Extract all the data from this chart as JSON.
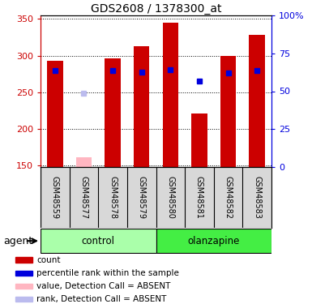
{
  "title": "GDS2608 / 1378300_at",
  "samples": [
    "GSM48559",
    "GSM48577",
    "GSM48578",
    "GSM48579",
    "GSM48580",
    "GSM48581",
    "GSM48582",
    "GSM48583"
  ],
  "groups": [
    "control",
    "control",
    "control",
    "control",
    "olanzapine",
    "olanzapine",
    "olanzapine",
    "olanzapine"
  ],
  "bar_heights": [
    293,
    null,
    296,
    313,
    345,
    221,
    299,
    328
  ],
  "absent_bar_heights": [
    null,
    161,
    null,
    null,
    null,
    null,
    null,
    null
  ],
  "blue_squares": [
    280,
    null,
    280,
    277,
    281,
    265,
    276,
    280
  ],
  "absent_blue_squares": [
    null,
    249,
    null,
    null,
    null,
    null,
    null,
    null
  ],
  "ylim_left": [
    148,
    355
  ],
  "ylim_right": [
    0,
    100
  ],
  "yticks_left": [
    150,
    200,
    250,
    300,
    350
  ],
  "yticks_right": [
    0,
    25,
    50,
    75,
    100
  ],
  "ytick_labels_right": [
    "0",
    "25",
    "50",
    "75",
    "100%"
  ],
  "bar_color": "#CC0000",
  "absent_bar_color": "#FFB6C1",
  "blue_color": "#0000DD",
  "absent_blue_color": "#BBBBEE",
  "control_color": "#AAFFAA",
  "olanzapine_color": "#44EE44",
  "label_bg_color": "#D8D8D8",
  "legend_items": [
    {
      "color": "#CC0000",
      "label": "count"
    },
    {
      "color": "#0000DD",
      "label": "percentile rank within the sample"
    },
    {
      "color": "#FFB6C1",
      "label": "value, Detection Call = ABSENT"
    },
    {
      "color": "#BBBBEE",
      "label": "rank, Detection Call = ABSENT"
    }
  ],
  "background_color": "#FFFFFF",
  "axis_left_color": "#CC0000",
  "axis_right_color": "#0000DD"
}
